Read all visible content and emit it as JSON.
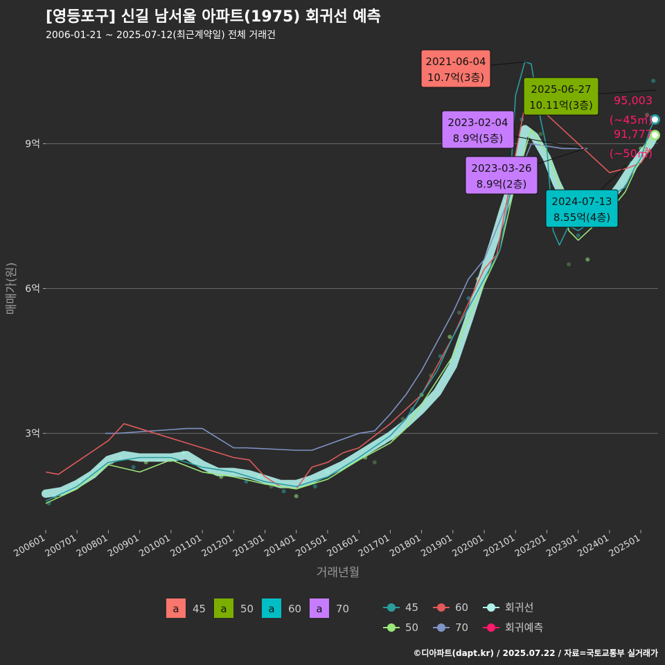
{
  "header": {
    "title": "[영등포구] 신길 남서울 아파트(1975) 회귀선 예측",
    "subtitle": "2006-01-21 ~ 2025-07-12(최근계약일) 전체 거래건"
  },
  "footer": {
    "text": "©디아파트(dapt.kr) / 2025.07.22 / 자료=국토교통부 실거래가"
  },
  "colors": {
    "s45": "#f8766d",
    "s50": "#7cae00",
    "s60": "#00bfc4",
    "s70": "#c77cff",
    "line45": "#2a9d9f",
    "line50": "#9be87a",
    "line60": "#e15a5a",
    "line70": "#7f93c5",
    "reg": "#aef0ea",
    "pred": "#ff1a6b",
    "grid": "#6a6a6a",
    "text": "#dddddd"
  },
  "chart_data": {
    "type": "line",
    "title": "[영등포구] 신길 남서울 아파트(1975) 회귀선 예측",
    "xlabel": "거래년월",
    "ylabel": "매매가(원)",
    "x_range": [
      2006.0,
      2025.55
    ],
    "y_range": [
      1.0,
      11.0
    ],
    "y_ticks": [
      {
        "value": 3,
        "label": "3억"
      },
      {
        "value": 6,
        "label": "6억"
      },
      {
        "value": 9,
        "label": "9억"
      }
    ],
    "x_ticks": [
      {
        "value": 2006,
        "label": "200601"
      },
      {
        "value": 2007,
        "label": "200701"
      },
      {
        "value": 2008,
        "label": "200801"
      },
      {
        "value": 2009,
        "label": "200901"
      },
      {
        "value": 2010,
        "label": "201001"
      },
      {
        "value": 2011,
        "label": "201101"
      },
      {
        "value": 2012,
        "label": "201201"
      },
      {
        "value": 2013,
        "label": "201301"
      },
      {
        "value": 2014,
        "label": "201401"
      },
      {
        "value": 2015,
        "label": "201501"
      },
      {
        "value": 2016,
        "label": "201601"
      },
      {
        "value": 2017,
        "label": "201701"
      },
      {
        "value": 2018,
        "label": "201801"
      },
      {
        "value": 2019,
        "label": "201901"
      },
      {
        "value": 2020,
        "label": "202001"
      },
      {
        "value": 2021,
        "label": "202101"
      },
      {
        "value": 2022,
        "label": "202201"
      },
      {
        "value": 2023,
        "label": "202301"
      },
      {
        "value": 2024,
        "label": "202401"
      },
      {
        "value": 2025,
        "label": "202501"
      }
    ],
    "series": [
      {
        "name": "회귀선",
        "key": "reg",
        "x": [
          2006.0,
          2006.5,
          2007.0,
          2007.5,
          2008.0,
          2008.5,
          2009.0,
          2009.5,
          2010.0,
          2010.5,
          2011.0,
          2011.5,
          2012.0,
          2012.5,
          2013.0,
          2013.5,
          2014.0,
          2014.5,
          2015.0,
          2015.5,
          2016.0,
          2016.5,
          2017.0,
          2017.5,
          2018.0,
          2018.5,
          2019.0,
          2019.5,
          2020.0,
          2020.3,
          2020.6,
          2021.0,
          2021.3,
          2021.6,
          2022.0,
          2022.3,
          2022.6,
          2023.0,
          2023.3,
          2023.6,
          2024.0,
          2024.3,
          2024.6,
          2025.0,
          2025.3,
          2025.45
        ],
        "values": [
          1.75,
          1.8,
          1.95,
          2.15,
          2.45,
          2.55,
          2.5,
          2.5,
          2.5,
          2.55,
          2.35,
          2.2,
          2.2,
          2.15,
          2.05,
          1.95,
          1.95,
          2.05,
          2.2,
          2.35,
          2.55,
          2.75,
          2.95,
          3.2,
          3.5,
          3.85,
          4.4,
          5.35,
          6.35,
          6.95,
          7.6,
          8.4,
          9.3,
          9.15,
          8.7,
          8.2,
          7.8,
          7.55,
          7.65,
          7.75,
          7.85,
          8.1,
          8.4,
          8.75,
          9.0,
          9.18
        ]
      },
      {
        "name": "45",
        "key": "line45",
        "x": [
          2006.0,
          2007.0,
          2008.0,
          2009.0,
          2010.0,
          2011.0,
          2012.0,
          2013.0,
          2014.0,
          2015.0,
          2016.0,
          2017.0,
          2017.5,
          2018.0,
          2018.5,
          2019.0,
          2019.5,
          2020.0,
          2020.5,
          2020.8,
          2021.0,
          2021.3,
          2021.5,
          2021.8,
          2022.0,
          2022.2,
          2022.4,
          2022.7,
          2023.0,
          2023.5,
          2024.0,
          2024.5,
          2024.8,
          2025.0,
          2025.3,
          2025.45
        ],
        "values": [
          1.6,
          1.9,
          2.4,
          2.5,
          2.5,
          2.3,
          2.2,
          2.0,
          1.9,
          2.1,
          2.5,
          2.95,
          3.3,
          3.8,
          4.3,
          5.0,
          5.6,
          6.2,
          6.8,
          7.9,
          10.0,
          10.7,
          10.65,
          9.5,
          8.9,
          7.2,
          6.9,
          7.3,
          7.2,
          7.4,
          7.9,
          8.1,
          8.5,
          8.7,
          9.3,
          9.5
        ]
      },
      {
        "name": "50",
        "key": "line50",
        "x": [
          2006.0,
          2007.0,
          2008.0,
          2009.0,
          2010.0,
          2011.0,
          2012.0,
          2013.0,
          2014.0,
          2015.0,
          2016.0,
          2017.0,
          2017.5,
          2018.0,
          2018.5,
          2019.0,
          2019.5,
          2020.0,
          2020.5,
          2021.0,
          2021.5,
          2022.0,
          2022.5,
          2022.7,
          2023.0,
          2023.5,
          2024.0,
          2024.5,
          2025.0,
          2025.3,
          2025.45
        ],
        "values": [
          1.55,
          1.85,
          2.35,
          2.2,
          2.45,
          2.2,
          2.1,
          1.95,
          1.85,
          2.05,
          2.45,
          2.8,
          3.1,
          3.6,
          4.1,
          4.6,
          5.4,
          6.1,
          6.8,
          8.2,
          9.3,
          8.8,
          8.0,
          7.2,
          7.0,
          7.3,
          7.6,
          8.0,
          8.7,
          9.1,
          9.2
        ]
      },
      {
        "name": "60",
        "key": "line60",
        "x": [
          2006.0,
          2006.4,
          2008.0,
          2008.5,
          2012.0,
          2012.5,
          2013.0,
          2013.5,
          2014.0,
          2014.5,
          2015.0,
          2015.5,
          2016.0,
          2017.0,
          2018.0,
          2018.5,
          2019.0,
          2019.5,
          2020.0,
          2020.4,
          2021.3,
          2021.5,
          2024.0,
          2024.6,
          2025.0,
          2025.3
        ],
        "values": [
          2.2,
          2.15,
          2.85,
          3.2,
          2.5,
          2.45,
          2.1,
          1.9,
          1.85,
          2.3,
          2.4,
          2.6,
          2.7,
          3.2,
          3.8,
          4.4,
          5.0,
          5.7,
          6.4,
          6.7,
          9.8,
          9.9,
          8.4,
          8.5,
          8.6,
          8.9
        ]
      },
      {
        "name": "70",
        "key": "line70",
        "x": [
          2007.9,
          2008.3,
          2010.5,
          2011.0,
          2012.0,
          2012.4,
          2014.0,
          2014.5,
          2016.0,
          2016.5,
          2017.0,
          2017.5,
          2018.0,
          2018.5,
          2019.0,
          2019.5,
          2020.0,
          2021.5,
          2022.5,
          2023.0,
          2023.3
        ],
        "values": [
          3.0,
          3.0,
          3.1,
          3.1,
          2.7,
          2.7,
          2.65,
          2.65,
          3.0,
          3.05,
          3.4,
          3.8,
          4.3,
          4.9,
          5.5,
          6.2,
          6.6,
          9.0,
          8.9,
          8.9,
          8.9
        ]
      },
      {
        "name": "회귀예측",
        "key": "pred",
        "x": [
          2025.45,
          2025.45
        ],
        "values": [
          9.5003,
          9.1777
        ]
      }
    ],
    "scatter_points": [
      [
        2006.1,
        1.55
      ],
      [
        2006.3,
        1.7
      ],
      [
        2006.6,
        1.8
      ],
      [
        2006.8,
        1.9
      ],
      [
        2007.1,
        2.0
      ],
      [
        2007.4,
        2.1
      ],
      [
        2007.7,
        2.3
      ],
      [
        2008.1,
        2.4
      ],
      [
        2008.4,
        2.5
      ],
      [
        2008.8,
        2.3
      ],
      [
        2009.2,
        2.4
      ],
      [
        2009.6,
        2.45
      ],
      [
        2010.0,
        2.5
      ],
      [
        2010.4,
        2.6
      ],
      [
        2010.8,
        2.4
      ],
      [
        2011.2,
        2.2
      ],
      [
        2011.6,
        2.1
      ],
      [
        2012.0,
        2.2
      ],
      [
        2012.4,
        2.0
      ],
      [
        2012.8,
        2.1
      ],
      [
        2013.2,
        1.9
      ],
      [
        2013.6,
        1.8
      ],
      [
        2014.0,
        1.7
      ],
      [
        2014.2,
        2.0
      ],
      [
        2014.6,
        1.9
      ],
      [
        2015.0,
        2.2
      ],
      [
        2015.4,
        2.3
      ],
      [
        2015.8,
        2.4
      ],
      [
        2016.2,
        2.5
      ],
      [
        2016.5,
        2.4
      ],
      [
        2016.8,
        2.8
      ],
      [
        2017.1,
        2.9
      ],
      [
        2017.4,
        3.3
      ],
      [
        2017.7,
        3.5
      ],
      [
        2018.0,
        3.8
      ],
      [
        2018.3,
        4.2
      ],
      [
        2018.6,
        4.6
      ],
      [
        2018.9,
        5.0
      ],
      [
        2019.2,
        5.5
      ],
      [
        2019.5,
        5.8
      ],
      [
        2019.8,
        6.2
      ],
      [
        2020.1,
        6.5
      ],
      [
        2020.4,
        7.0
      ],
      [
        2020.7,
        7.8
      ],
      [
        2021.0,
        8.5
      ],
      [
        2021.2,
        9.5
      ],
      [
        2021.5,
        9.9
      ],
      [
        2021.8,
        9.2
      ],
      [
        2022.1,
        8.5
      ],
      [
        2022.4,
        7.4
      ],
      [
        2022.7,
        6.5
      ],
      [
        2023.0,
        7.1
      ],
      [
        2023.3,
        6.6
      ],
      [
        2023.5,
        7.3
      ],
      [
        2023.8,
        7.6
      ],
      [
        2024.1,
        7.9
      ],
      [
        2024.4,
        8.2
      ],
      [
        2024.7,
        8.6
      ],
      [
        2025.0,
        8.9
      ],
      [
        2025.2,
        9.6
      ],
      [
        2025.4,
        10.3
      ]
    ],
    "annotations": [
      {
        "date": "2021-06-04",
        "price": "10.7억(3층)",
        "x": 2021.42,
        "y": 10.7,
        "color": "#f8766d"
      },
      {
        "date": "2025-06-27",
        "price": "10.11억(3층)",
        "x": 2025.49,
        "y": 10.11,
        "color": "#7cae00"
      },
      {
        "date": "2023-02-04",
        "price": "8.9억(5층)",
        "x": 2023.09,
        "y": 8.9,
        "color": "#c77cff"
      },
      {
        "date": "2023-03-26",
        "price": "8.9억(2층)",
        "x": 2023.23,
        "y": 8.9,
        "color": "#c77cff"
      },
      {
        "date": "2024-07-13",
        "price": "8.55억(4층)",
        "x": 2024.53,
        "y": 8.55,
        "color": "#00bfc4"
      }
    ],
    "predictions": [
      {
        "value": "95,003",
        "area": "(~45㎡)",
        "y": 9.5003
      },
      {
        "value": "91,777",
        "area": "(~50㎡)",
        "y": 9.1777
      }
    ],
    "legend_a": {
      "letter": "a",
      "items": [
        {
          "label": "45",
          "color": "#f8766d"
        },
        {
          "label": "50",
          "color": "#7cae00"
        },
        {
          "label": "60",
          "color": "#00bfc4"
        },
        {
          "label": "70",
          "color": "#c77cff"
        }
      ]
    },
    "legend_b": {
      "items": [
        {
          "label": "45",
          "key": "line45"
        },
        {
          "label": "60",
          "key": "line60"
        },
        {
          "label": "회귀선",
          "key": "reg"
        },
        {
          "label": "50",
          "key": "line50"
        },
        {
          "label": "70",
          "key": "line70"
        },
        {
          "label": "회귀예측",
          "key": "pred"
        }
      ]
    }
  }
}
